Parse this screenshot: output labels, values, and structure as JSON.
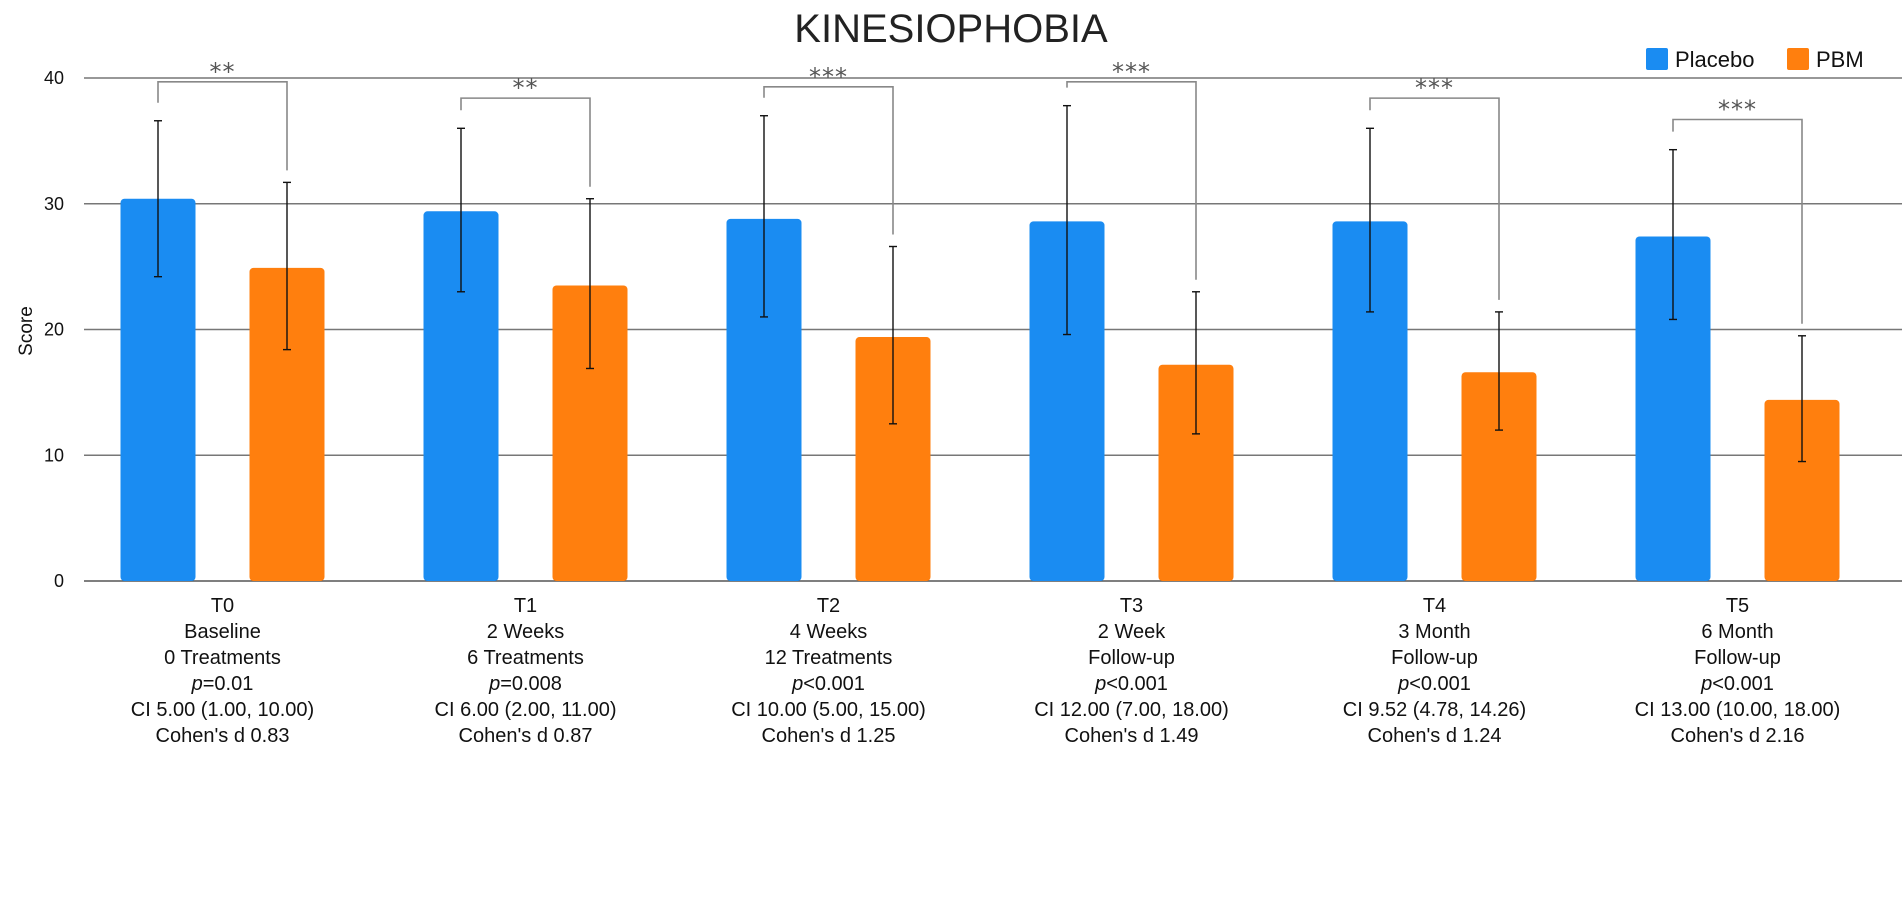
{
  "chart_data": {
    "type": "bar",
    "title": "KINESIOPHOBIA",
    "xlabel": "",
    "ylabel": "Score",
    "ylim": [
      0,
      40
    ],
    "yticks": [
      0,
      10,
      20,
      30,
      40
    ],
    "grid": true,
    "legend_position": "top-right",
    "categories": [
      "T0",
      "T1",
      "T2",
      "T3",
      "T4",
      "T5"
    ],
    "category_labels": [
      {
        "period": "T0",
        "line1": "Baseline",
        "line2": "0 Treatments",
        "p": "=0.01",
        "ci": "CI 5.00 (1.00, 10.00)",
        "cohen": "Cohen's d 0.83"
      },
      {
        "period": "T1",
        "line1": "2 Weeks",
        "line2": "6 Treatments",
        "p": "=0.008",
        "ci": "CI 6.00 (2.00, 11.00)",
        "cohen": "Cohen's d 0.87"
      },
      {
        "period": "T2",
        "line1": "4 Weeks",
        "line2": "12 Treatments",
        "p": "<0.001",
        "ci": "CI 10.00 (5.00, 15.00)",
        "cohen": "Cohen's d 1.25"
      },
      {
        "period": "T3",
        "line1": "2 Week",
        "line2": "Follow-up",
        "p": "<0.001",
        "ci": "CI 12.00 (7.00, 18.00)",
        "cohen": "Cohen's d 1.49"
      },
      {
        "period": "T4",
        "line1": "3 Month",
        "line2": "Follow-up",
        "p": "<0.001",
        "ci": "CI 9.52 (4.78, 14.26)",
        "cohen": "Cohen's d 1.24"
      },
      {
        "period": "T5",
        "line1": "6 Month",
        "line2": "Follow-up",
        "p": "<0.001",
        "ci": "CI 13.00 (10.00, 18.00)",
        "cohen": "Cohen's d 2.16"
      }
    ],
    "p_symbol": "p",
    "series": [
      {
        "name": "Placebo",
        "color": "#1a8cf2",
        "values": [
          30.4,
          29.4,
          28.8,
          28.6,
          28.6,
          27.4
        ],
        "err_low": [
          24.2,
          23.0,
          21.0,
          19.6,
          21.4,
          20.8
        ],
        "err_high": [
          36.6,
          36.0,
          37.0,
          37.8,
          36.0,
          34.3
        ]
      },
      {
        "name": "PBM",
        "color": "#ff7f0e",
        "values": [
          24.9,
          23.5,
          19.4,
          17.2,
          16.6,
          14.4
        ],
        "err_low": [
          18.4,
          16.9,
          12.5,
          11.7,
          12.0,
          9.5
        ],
        "err_high": [
          31.7,
          30.4,
          26.6,
          23.0,
          21.4,
          19.5
        ]
      }
    ],
    "significance": [
      "**",
      "**",
      "***",
      "***",
      "***",
      "***"
    ],
    "significance_bracket_top": [
      39.7,
      38.4,
      39.3,
      39.7,
      38.4,
      36.7
    ]
  }
}
